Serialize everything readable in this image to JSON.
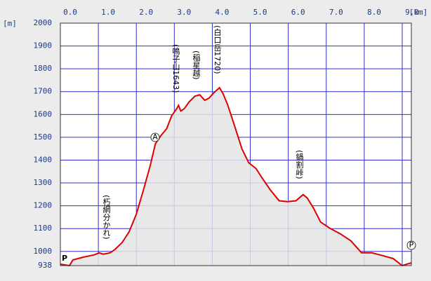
{
  "chart_data": {
    "type": "line",
    "x_unit": "[km]",
    "y_unit": "[m]",
    "x": [
      0,
      0.24,
      0.33,
      0.61,
      0.89,
      1.02,
      1.13,
      1.31,
      1.44,
      1.63,
      1.81,
      2.0,
      2.19,
      2.37,
      2.5,
      2.65,
      2.8,
      2.93,
      3.06,
      3.11,
      3.17,
      3.26,
      3.39,
      3.54,
      3.67,
      3.8,
      3.91,
      4.04,
      4.19,
      4.28,
      4.41,
      4.59,
      4.78,
      4.96,
      5.15,
      5.33,
      5.52,
      5.76,
      5.98,
      6.2,
      6.39,
      6.5,
      6.67,
      6.85,
      7.09,
      7.37,
      7.65,
      7.93,
      8.2,
      8.48,
      8.76,
      9.0,
      9.24
    ],
    "series": [
      {
        "color": "#dd0000",
        "values": [
          944,
          938,
          963,
          975,
          985,
          994,
          988,
          994,
          1009,
          1040,
          1086,
          1163,
          1271,
          1378,
          1471,
          1508,
          1538,
          1594,
          1625,
          1640,
          1615,
          1625,
          1655,
          1680,
          1686,
          1662,
          1671,
          1695,
          1717,
          1692,
          1640,
          1548,
          1449,
          1388,
          1363,
          1317,
          1271,
          1222,
          1218,
          1222,
          1249,
          1234,
          1188,
          1129,
          1102,
          1077,
          1046,
          994,
          994,
          982,
          969,
          938,
          950
        ]
      }
    ],
    "xlim": [
      0,
      9.24
    ],
    "ylim": [
      938,
      2000
    ],
    "xticks": [
      {
        "value": 0,
        "label": "0.0"
      },
      {
        "value": 1,
        "label": "1.0"
      },
      {
        "value": 2,
        "label": "2.0"
      },
      {
        "value": 3,
        "label": "3.0"
      },
      {
        "value": 4,
        "label": "4.0"
      },
      {
        "value": 5,
        "label": "5.0"
      },
      {
        "value": 6,
        "label": "6.0"
      },
      {
        "value": 7,
        "label": "7.0"
      },
      {
        "value": 8,
        "label": "8.0"
      },
      {
        "value": 9,
        "label": "9.0"
      }
    ],
    "yticks": [
      938,
      1000,
      1100,
      1200,
      1300,
      1400,
      1500,
      1600,
      1700,
      1800,
      1900,
      2000
    ],
    "grid": true,
    "annotations": [
      "P",
      "(朽網分かれ)",
      "A",
      "(鳴子山1643)",
      "(稲星越)",
      "(白口岳1720)",
      "(鍋割峠)",
      "P"
    ]
  }
}
